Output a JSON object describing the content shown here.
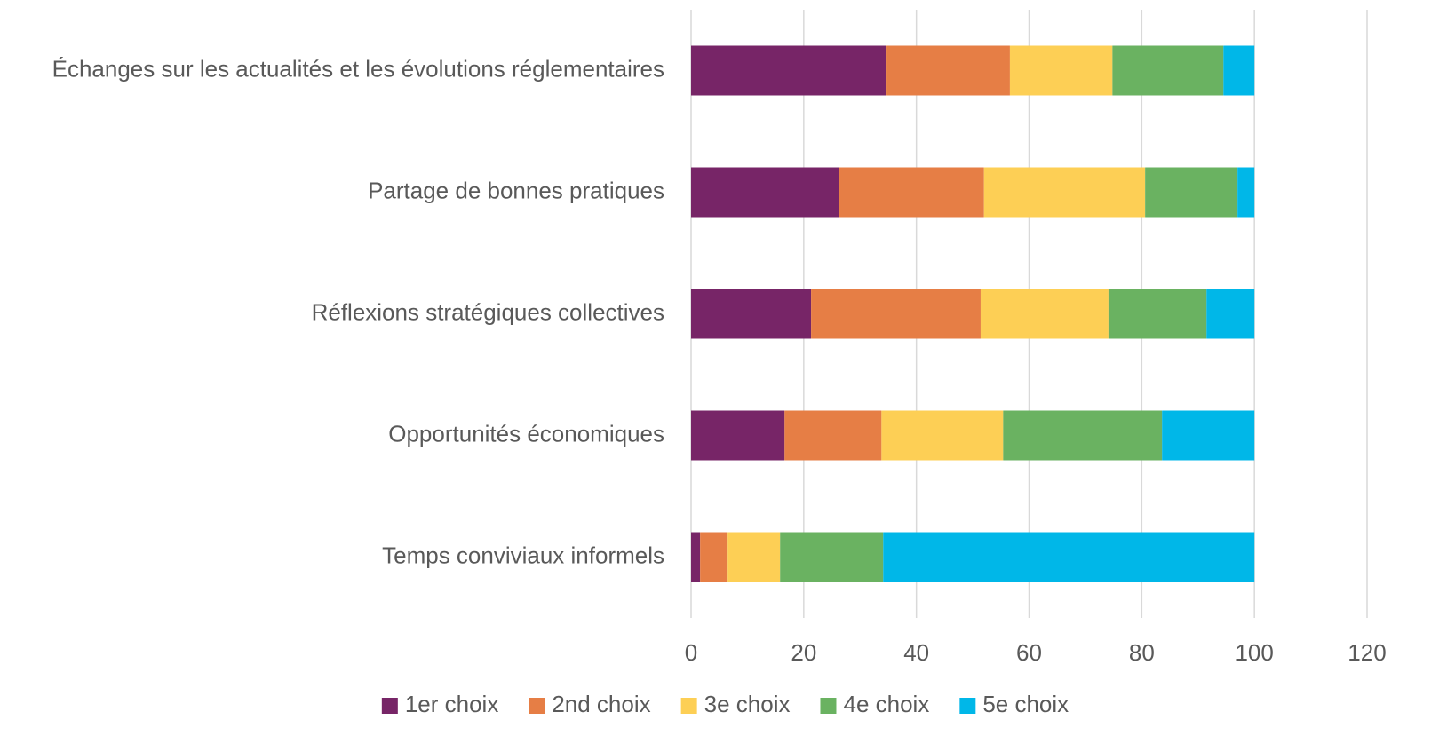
{
  "chart_data": {
    "type": "stacked_bar_horizontal",
    "categories": [
      "Échanges sur les actualités et les évolutions réglementaires",
      "Partage de bonnes pratiques",
      "Réflexions stratégiques collectives",
      "Opportunités économiques",
      "Temps conviviaux informels"
    ],
    "series": [
      {
        "name": "1er choix",
        "color": "#772567",
        "values": [
          34.7,
          26.2,
          21.3,
          16.6,
          1.6
        ]
      },
      {
        "name": "2nd choix",
        "color": "#e67e45",
        "values": [
          21.9,
          25.8,
          30.1,
          17.2,
          4.9
        ]
      },
      {
        "name": "3e choix",
        "color": "#fdcf55",
        "values": [
          18.2,
          28.6,
          22.7,
          21.6,
          9.3
        ]
      },
      {
        "name": "4e choix",
        "color": "#6ab261",
        "values": [
          19.7,
          16.4,
          17.4,
          28.2,
          18.3
        ]
      },
      {
        "name": "5e choix",
        "color": "#00b7e8",
        "values": [
          5.5,
          3.0,
          8.5,
          16.4,
          65.9
        ]
      }
    ],
    "xlim": [
      0,
      120
    ],
    "xticks": [
      0,
      20,
      40,
      60,
      80,
      100,
      120
    ],
    "grid": true,
    "legend": "bottom"
  }
}
